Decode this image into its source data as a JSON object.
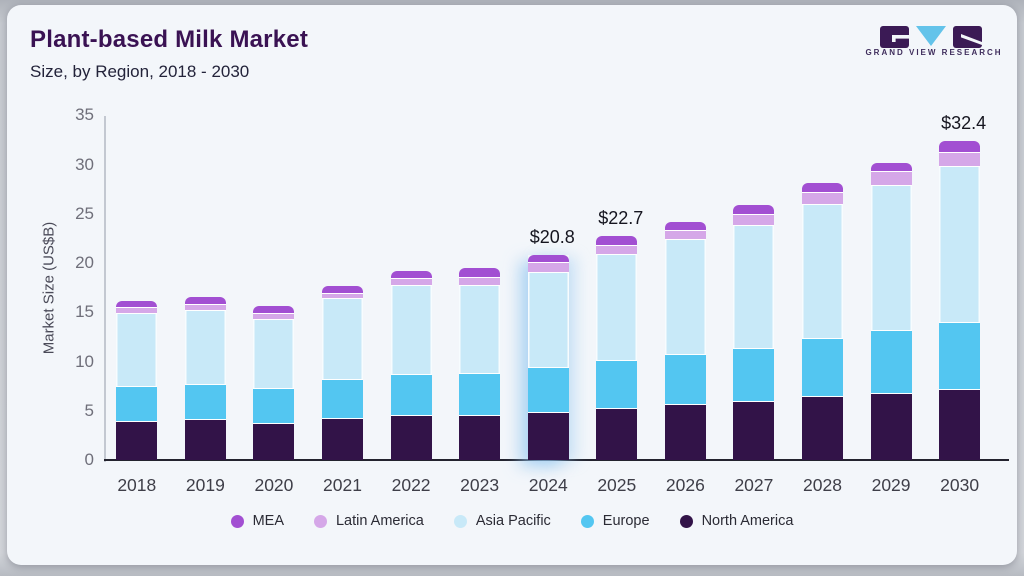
{
  "page": {
    "title": "Plant-based Milk Market",
    "subtitle": "Size, by Region, 2018 - 2030"
  },
  "logo": {
    "caption": "GRAND VIEW RESEARCH",
    "block_color": "#3b1a55",
    "triangle_color": "#63c3ea"
  },
  "colors": {
    "card_background": "#f3f6fa",
    "title_text": "#3a1253",
    "axis_line": "#23232e"
  },
  "chart_data": {
    "type": "bar",
    "stacked": true,
    "title": "Plant-based Milk Market",
    "subtitle": "Size, by Region, 2018 - 2030",
    "xlabel": "",
    "ylabel": "Market Size (US$B)",
    "ylim": [
      0,
      35
    ],
    "yticks": [
      0,
      5,
      10,
      15,
      20,
      25,
      30,
      35
    ],
    "grid": false,
    "legend_position": "bottom",
    "categories": [
      "2018",
      "2019",
      "2020",
      "2021",
      "2022",
      "2023",
      "2024",
      "2025",
      "2026",
      "2027",
      "2028",
      "2029",
      "2030"
    ],
    "series": [
      {
        "name": "North America",
        "color": "#321348",
        "values": [
          4.0,
          4.2,
          3.8,
          4.3,
          4.6,
          4.6,
          4.9,
          5.3,
          5.7,
          6.0,
          6.5,
          6.8,
          7.2
        ]
      },
      {
        "name": "Europe",
        "color": "#53c6f1",
        "values": [
          3.5,
          3.5,
          3.5,
          3.9,
          4.1,
          4.2,
          4.5,
          4.9,
          5.1,
          5.4,
          5.9,
          6.4,
          6.8
        ]
      },
      {
        "name": "Asia Pacific",
        "color": "#c8e9f8",
        "values": [
          7.4,
          7.5,
          7.0,
          8.2,
          9.1,
          9.0,
          9.7,
          10.7,
          11.6,
          12.5,
          13.6,
          14.7,
          15.8
        ]
      },
      {
        "name": "Latin America",
        "color": "#d5a7e8",
        "values": [
          0.6,
          0.6,
          0.6,
          0.6,
          0.7,
          0.8,
          1.0,
          0.9,
          1.0,
          1.1,
          1.2,
          1.4,
          1.5
        ]
      },
      {
        "name": "MEA",
        "color": "#a24fd2",
        "values": [
          0.6,
          0.7,
          0.7,
          0.7,
          0.7,
          0.9,
          0.7,
          0.9,
          0.8,
          0.9,
          0.9,
          0.9,
          1.1
        ]
      }
    ],
    "totals": [
      16.1,
      16.5,
      15.6,
      17.7,
      19.2,
      19.5,
      20.8,
      22.7,
      24.2,
      25.9,
      28.1,
      30.2,
      32.4
    ],
    "annotations": [
      {
        "category": "2024",
        "text": "$20.8"
      },
      {
        "category": "2025",
        "text": "$22.7"
      },
      {
        "category": "2030",
        "text": "$32.4"
      }
    ],
    "highlighted_category": "2024",
    "legend_order": [
      "MEA",
      "Latin America",
      "Asia Pacific",
      "Europe",
      "North America"
    ]
  }
}
